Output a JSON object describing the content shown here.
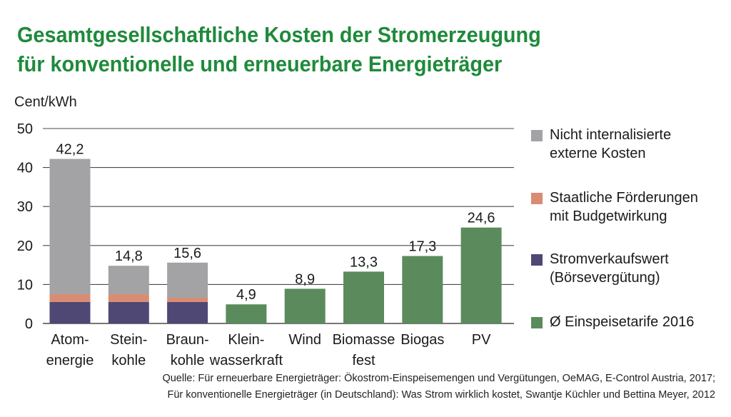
{
  "title": {
    "line1": "Gesamtgesellschaftliche Kosten der Stromerzeugung",
    "line2": "für konventionelle und erneuerbare Energieträger"
  },
  "unit_label": "Cent/kWh",
  "source": {
    "line1": "Quelle: Für erneuerbare Energieträger: Ökostrom-Einspeisemengen und Vergütungen, OeMAG, E-Control Austria, 2017;",
    "line2": "Für konventionelle Energieträger (in Deutschland): Was Strom wirklich kostet, Swantje Küchler und Bettina Meyer, 2012"
  },
  "colors": {
    "nicht_internalisiert": "#a3a3a5",
    "foerderung": "#d98c72",
    "stromverkaufswert": "#4f4874",
    "einspeisetarif": "#5b8b5c",
    "grid": "#4a4a4a",
    "title": "#1f8a3b"
  },
  "chart_data": {
    "type": "bar",
    "stacked": true,
    "categories": [
      [
        "Atom-",
        "energie"
      ],
      [
        "Stein-",
        "kohle"
      ],
      [
        "Braun-",
        "kohle"
      ],
      [
        "Klein-",
        "wasserkraft"
      ],
      [
        "Wind"
      ],
      [
        "Biomasse",
        "fest"
      ],
      [
        "Biogas"
      ],
      [
        "PV"
      ]
    ],
    "totals_labels": [
      "42,2",
      "14,8",
      "15,6",
      "4,9",
      "8,9",
      "13,3",
      "17,3",
      "24,6"
    ],
    "series": [
      {
        "name": "Stromverkaufswert\n(Börsevergütung)",
        "key": "stromverkaufswert",
        "values": [
          5.5,
          5.5,
          5.5,
          0,
          0,
          0,
          0,
          0
        ]
      },
      {
        "name": "Staatliche Förderungen\nmit Budgetwirkung",
        "key": "foerderung",
        "values": [
          2.0,
          2.0,
          1.1,
          0,
          0,
          0,
          0,
          0
        ]
      },
      {
        "name": "Nicht internalisierte\nexterne Kosten",
        "key": "nicht_internalisiert",
        "values": [
          34.7,
          7.3,
          9.0,
          0,
          0,
          0,
          0,
          0
        ]
      },
      {
        "name": "Ø Einspeisetarife 2016",
        "key": "einspeisetarif",
        "values": [
          0,
          0,
          0,
          4.9,
          8.9,
          13.3,
          17.3,
          24.6
        ]
      }
    ],
    "yticks": [
      "0",
      "10",
      "20",
      "30",
      "40",
      "50"
    ],
    "ylim": [
      0,
      50
    ],
    "legend_order": [
      "nicht_internalisiert",
      "foerderung",
      "stromverkaufswert",
      "einspeisetarif"
    ],
    "legend_position": "right",
    "grid": true
  }
}
